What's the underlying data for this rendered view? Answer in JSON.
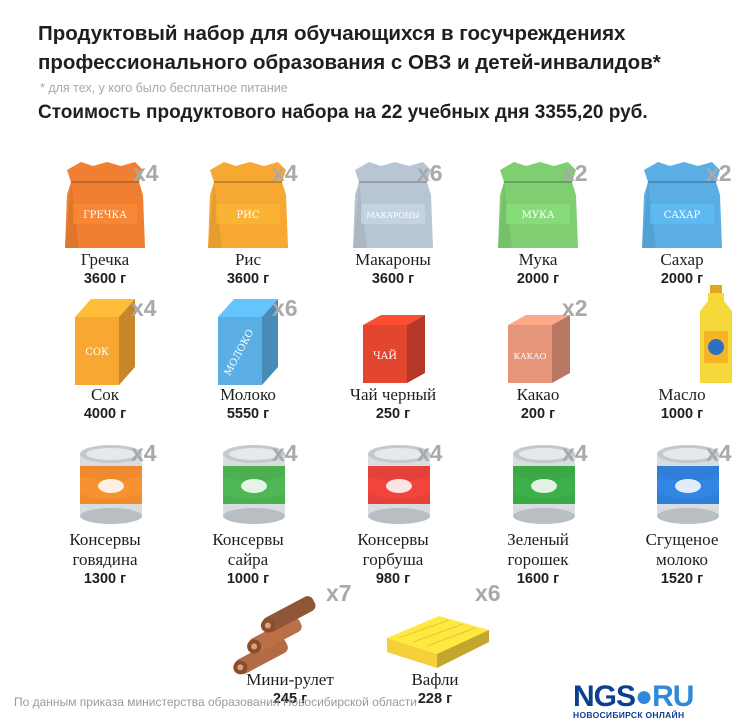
{
  "header": {
    "title": "Продуктовый набор для обучающихся в госучреждениях профессионального образования с ОВЗ и детей-инвалидов*",
    "subtitle": "* для тех, у кого было бесплатное питание",
    "cost": "Стоимость продуктового набора на 22 учебных дня 3355,20 руб."
  },
  "items": [
    {
      "name": "Гречка",
      "weight": "3600 г",
      "qty": "x4",
      "package_text": "ГРЕЧКА",
      "icon": "bag-icon",
      "color": "#f07f32"
    },
    {
      "name": "Рис",
      "weight": "3600 г",
      "qty": "x4",
      "package_text": "РИС",
      "icon": "bag-icon",
      "color": "#f7a833"
    },
    {
      "name": "Макароны",
      "weight": "3600 г",
      "qty": "x6",
      "package_text": "МАКАРОНЫ",
      "icon": "bag-icon",
      "color": "#b8c6d3"
    },
    {
      "name": "Мука",
      "weight": "2000 г",
      "qty": "x2",
      "package_text": "МУКА",
      "icon": "bag-icon",
      "color": "#7fcf72"
    },
    {
      "name": "Сахар",
      "weight": "2000 г",
      "qty": "x2",
      "package_text": "САХАР",
      "icon": "bag-icon",
      "color": "#5aaee3"
    },
    {
      "name": "Сок",
      "weight": "4000 г",
      "qty": "x4",
      "package_text": "СОК",
      "icon": "carton-icon",
      "color": "#f7a833"
    },
    {
      "name": "Молоко",
      "weight": "5550 г",
      "qty": "x6",
      "package_text": "МОЛОКО",
      "icon": "carton-icon",
      "color": "#5aaee3"
    },
    {
      "name": "Чай черный",
      "weight": "250 г",
      "qty": "",
      "package_text": "ЧАЙ",
      "icon": "tea-box-icon",
      "color": "#e2462f"
    },
    {
      "name": "Какао",
      "weight": "200 г",
      "qty": "x2",
      "package_text": "КАКАО",
      "icon": "cocoa-box-icon",
      "color": "#e5957a"
    },
    {
      "name": "Масло",
      "weight": "1000 г",
      "qty": "",
      "package_text": "",
      "icon": "oil-bottle-icon",
      "color": "#f5d93a"
    },
    {
      "name": "Консервы говядина",
      "weight": "1300 г",
      "qty": "x4",
      "package_text": "",
      "icon": "can-icon",
      "color": "#f08a2e"
    },
    {
      "name": "Консервы сайра",
      "weight": "1000 г",
      "qty": "x4",
      "package_text": "",
      "icon": "can-icon",
      "color": "#4caf50"
    },
    {
      "name": "Консервы горбуша",
      "weight": "980 г",
      "qty": "x4",
      "package_text": "",
      "icon": "can-icon",
      "color": "#e3413a"
    },
    {
      "name": "Зеленый горошек",
      "weight": "1600 г",
      "qty": "x4",
      "package_text": "",
      "icon": "can-icon",
      "color": "#3aa845"
    },
    {
      "name": "Сгущеное молоко",
      "weight": "1520 г",
      "qty": "x4",
      "package_text": "",
      "icon": "can-icon",
      "color": "#2f7ed8"
    },
    {
      "name": "Мини-рулет",
      "weight": "245 г",
      "qty": "x7",
      "package_text": "",
      "icon": "rolls-icon",
      "color": "#b36b45"
    },
    {
      "name": "Вафли",
      "weight": "228 г",
      "qty": "x6",
      "package_text": "",
      "icon": "wafer-icon",
      "color": "#f5d03a"
    }
  ],
  "footer": {
    "source": "По данным приказа министерства образования Новосибирской области",
    "logo_part1": "NGS",
    "logo_part2": "RU",
    "logo_city": "НОВОСИБИРСК ОНЛАЙН"
  }
}
